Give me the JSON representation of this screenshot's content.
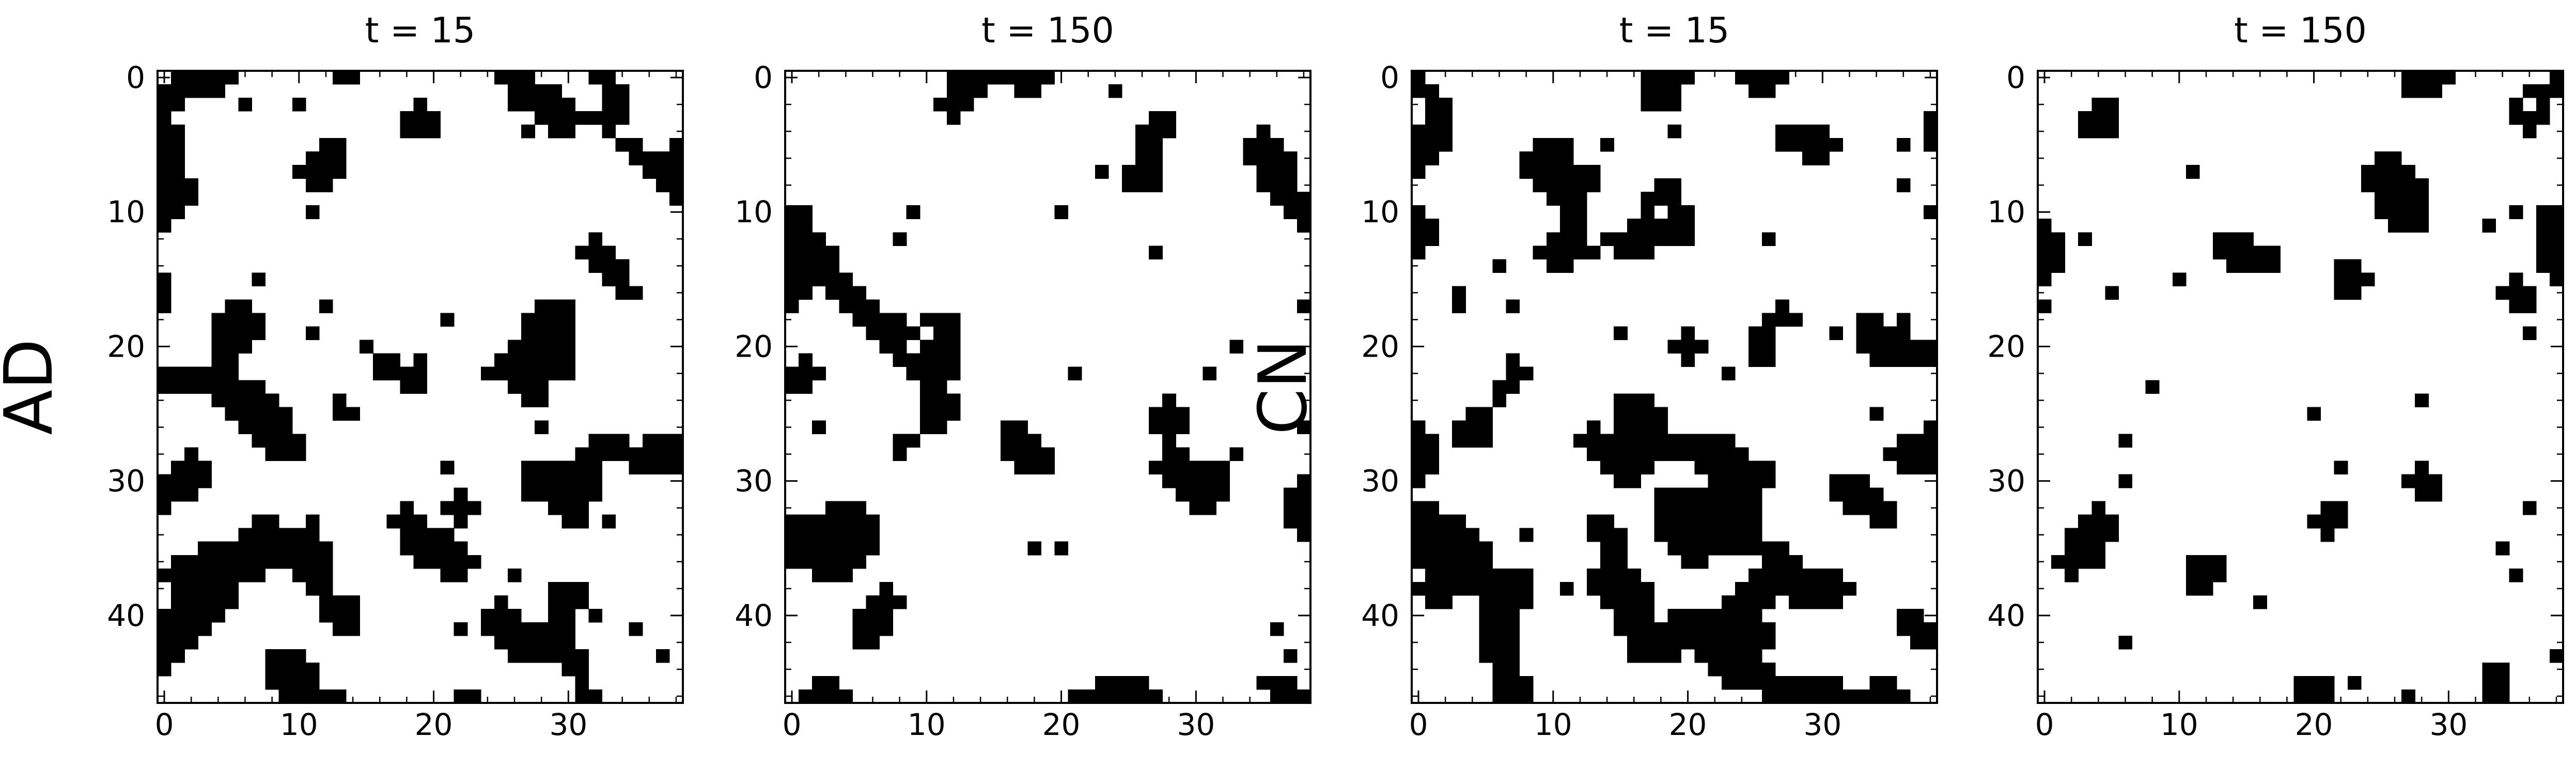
{
  "figure": {
    "row_labels": [
      "AD",
      "CN"
    ]
  },
  "chart_data": [
    {
      "type": "heatmap",
      "title": "t = 15",
      "row_label": "AD",
      "xlabel": "",
      "ylabel": "",
      "xlim": [
        -0.5,
        38.5
      ],
      "ylim": [
        46.5,
        -0.5
      ],
      "xticks": [
        0,
        10,
        20,
        30
      ],
      "yticks": [
        0,
        10,
        20,
        30,
        40
      ],
      "colormap": {
        "0": "#000000",
        "1": "#ffffff"
      },
      "grid": false,
      "seed": 11,
      "fill": 0.52
    },
    {
      "type": "heatmap",
      "title": "t = 150",
      "xlabel": "",
      "ylabel": "",
      "xlim": [
        -0.5,
        38.5
      ],
      "ylim": [
        46.5,
        -0.5
      ],
      "xticks": [
        0,
        10,
        20,
        30
      ],
      "yticks": [
        0,
        10,
        20,
        30,
        40
      ],
      "colormap": {
        "0": "#000000",
        "1": "#ffffff"
      },
      "grid": false,
      "seed": 29,
      "fill": 0.55
    },
    {
      "type": "heatmap",
      "title": "t = 15",
      "row_label": "CN",
      "xlabel": "",
      "ylabel": "",
      "xlim": [
        -0.5,
        38.5
      ],
      "ylim": [
        46.5,
        -0.5
      ],
      "xticks": [
        0,
        10,
        20,
        30
      ],
      "yticks": [
        0,
        10,
        20,
        30,
        40
      ],
      "colormap": {
        "0": "#000000",
        "1": "#ffffff"
      },
      "grid": false,
      "seed": 47,
      "fill": 0.5
    },
    {
      "type": "heatmap",
      "title": "t = 150",
      "xlabel": "",
      "ylabel": "",
      "xlim": [
        -0.5,
        38.5
      ],
      "ylim": [
        46.5,
        -0.5
      ],
      "xticks": [
        0,
        10,
        20,
        30
      ],
      "yticks": [
        0,
        10,
        20,
        30,
        40
      ],
      "colormap": {
        "0": "#000000",
        "1": "#ffffff"
      },
      "grid": false,
      "seed": 83,
      "fill": 0.58
    }
  ]
}
